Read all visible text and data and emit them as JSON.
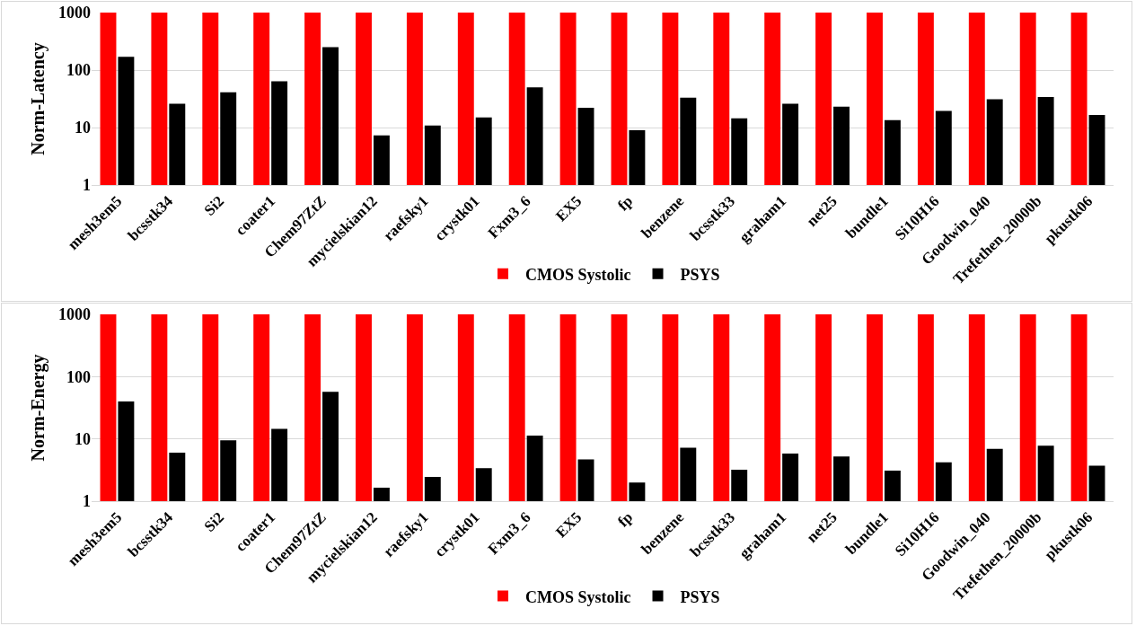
{
  "chart_data": [
    {
      "type": "bar",
      "ylabel": "Norm-Latency",
      "categories": [
        "mesh3em5",
        "bcsstk34",
        "Si2",
        "coater1",
        "Chem97ZtZ",
        "mycielskian12",
        "raefsky1",
        "crystk01",
        "Fxm3_6",
        "EX5",
        "fp",
        "benzene",
        "bcsstk33",
        "graham1",
        "net25",
        "bundle1",
        "Si10H16",
        "Goodwin_040",
        "Trefethen_20000b",
        "pkustk06"
      ],
      "series": [
        {
          "name": "CMOS Systolic",
          "color": "#ff0000",
          "values": [
            1000,
            1000,
            1000,
            1000,
            1000,
            1000,
            1000,
            1000,
            1000,
            1000,
            1000,
            1000,
            1000,
            1000,
            1000,
            1000,
            1000,
            1000,
            1000,
            1000
          ]
        },
        {
          "name": "PSYS",
          "color": "#000000",
          "values": [
            170,
            26,
            41,
            64,
            250,
            7.3,
            10.8,
            15,
            50,
            22,
            9,
            33,
            14.5,
            26,
            23,
            13.5,
            19.5,
            31,
            34,
            16.5
          ]
        }
      ],
      "log": true,
      "ylim": [
        1,
        1000
      ],
      "yticks": [
        1,
        10,
        100,
        1000
      ],
      "grid": "y",
      "legend": "bottom"
    },
    {
      "type": "bar",
      "ylabel": "Norm-Energy",
      "categories": [
        "mesh3em5",
        "bcsstk34",
        "Si2",
        "coater1",
        "Chem97ZtZ",
        "mycielskian12",
        "raefsky1",
        "crystk01",
        "Fxm3_6",
        "EX5",
        "fp",
        "benzene",
        "bcsstk33",
        "graham1",
        "net25",
        "bundle1",
        "Si10H16",
        "Goodwin_040",
        "Trefethen_20000b",
        "pkustk06"
      ],
      "series": [
        {
          "name": "CMOS Systolic",
          "color": "#ff0000",
          "values": [
            1000,
            1000,
            1000,
            1000,
            1000,
            1000,
            1000,
            1000,
            1000,
            1000,
            1000,
            1000,
            1000,
            1000,
            1000,
            1000,
            1000,
            1000,
            1000,
            1000
          ]
        },
        {
          "name": "PSYS",
          "color": "#000000",
          "values": [
            40,
            6,
            9.5,
            14.5,
            57,
            1.65,
            2.45,
            3.4,
            11.3,
            4.7,
            2,
            7.2,
            3.2,
            5.8,
            5.2,
            3.1,
            4.2,
            6.9,
            7.8,
            3.7
          ]
        }
      ],
      "log": true,
      "ylim": [
        1,
        1000
      ],
      "yticks": [
        1,
        10,
        100,
        1000
      ],
      "grid": "y",
      "legend": "bottom"
    }
  ]
}
